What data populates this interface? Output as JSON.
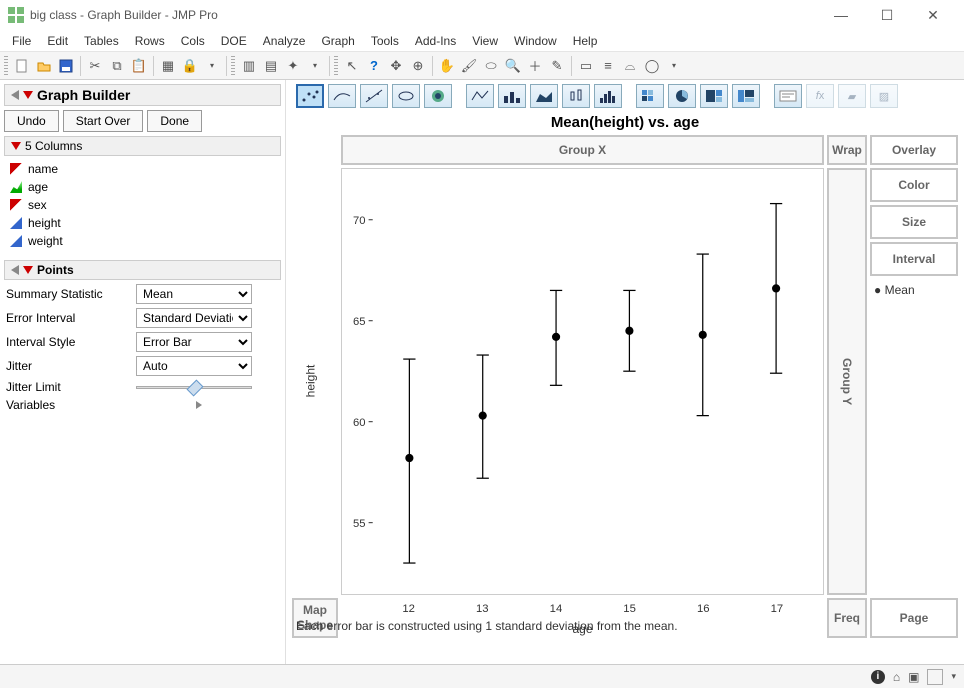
{
  "window": {
    "title": "big class - Graph Builder - JMP Pro",
    "buttons": {
      "min": "—",
      "max": "☐",
      "close": "✕"
    }
  },
  "menus": [
    "File",
    "Edit",
    "Tables",
    "Rows",
    "Cols",
    "DOE",
    "Analyze",
    "Graph",
    "Tools",
    "Add-Ins",
    "View",
    "Window",
    "Help"
  ],
  "section": {
    "title": "Graph Builder"
  },
  "action_buttons": {
    "undo": "Undo",
    "start_over": "Start Over",
    "done": "Done"
  },
  "columns": {
    "header": "5 Columns",
    "items": [
      {
        "name": "name",
        "icon": "red"
      },
      {
        "name": "age",
        "icon": "green"
      },
      {
        "name": "sex",
        "icon": "red"
      },
      {
        "name": "height",
        "icon": "blue"
      },
      {
        "name": "weight",
        "icon": "blue"
      }
    ]
  },
  "points": {
    "title": "Points",
    "summary_label": "Summary Statistic",
    "summary_value": "Mean",
    "error_label": "Error Interval",
    "error_value": "Standard Deviation",
    "style_label": "Interval Style",
    "style_value": "Error Bar",
    "jitter_label": "Jitter",
    "jitter_value": "Auto",
    "jitter_limit_label": "Jitter Limit",
    "variables_label": "Variables"
  },
  "chart": {
    "title": "Mean(height) vs. age",
    "x_label": "age",
    "y_label": "height",
    "drop_zones": {
      "groupx": "Group X",
      "wrap": "Wrap",
      "overlay": "Overlay",
      "color": "Color",
      "size": "Size",
      "interval": "Interval",
      "groupy": "Group Y",
      "freq": "Freq",
      "page": "Page",
      "map": "Map Shape"
    },
    "legend": {
      "mean": "Mean"
    },
    "footnote": "Each error bar is constructed using 1 standard deviation from the mean.",
    "type": "errorbar",
    "x_categories": [
      12,
      13,
      14,
      15,
      16,
      17
    ],
    "y_ticks": [
      55,
      60,
      65,
      70
    ],
    "ylim": [
      52,
      72
    ],
    "series": [
      {
        "x": 12,
        "mean": 58.2,
        "low": 53.0,
        "high": 63.1
      },
      {
        "x": 13,
        "mean": 60.3,
        "low": 57.2,
        "high": 63.3
      },
      {
        "x": 14,
        "mean": 64.2,
        "low": 61.8,
        "high": 66.5
      },
      {
        "x": 15,
        "mean": 64.5,
        "low": 62.5,
        "high": 66.5
      },
      {
        "x": 16,
        "mean": 64.3,
        "low": 60.3,
        "high": 68.3
      },
      {
        "x": 17,
        "mean": 66.6,
        "low": 62.4,
        "high": 70.8
      }
    ],
    "colors": {
      "marker": "#000000",
      "bar": "#000000",
      "background": "#ffffff",
      "grid": "#cccccc",
      "axis_text": "#333333"
    },
    "marker_size": 4,
    "cap_width": 12,
    "line_width": 1.2
  }
}
